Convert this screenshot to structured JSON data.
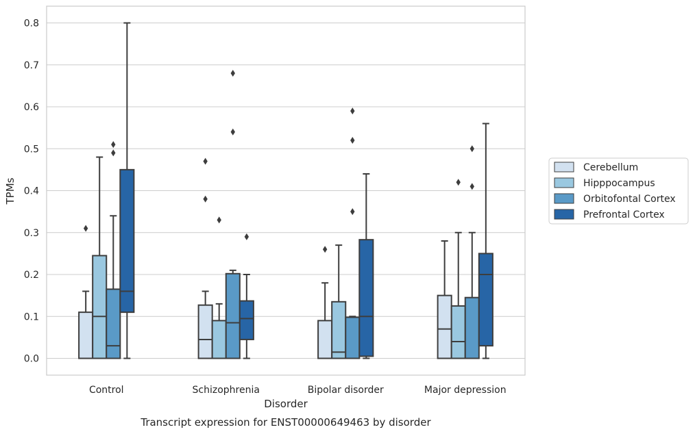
{
  "chart_data": {
    "type": "boxplot",
    "title": "",
    "caption": "Transcript expression for ENST00000649463 by disorder",
    "xlabel": "Disorder",
    "ylabel": "TPMs",
    "ylim": [
      -0.04,
      0.84
    ],
    "yticks": [
      0.0,
      0.1,
      0.2,
      0.3,
      0.4,
      0.5,
      0.6,
      0.7,
      0.8
    ],
    "ytick_labels": [
      "0.0",
      "0.1",
      "0.2",
      "0.3",
      "0.4",
      "0.5",
      "0.6",
      "0.7",
      "0.8"
    ],
    "grid": "horizontal",
    "legend_placement": "right-outside",
    "categories": [
      "Control",
      "Schizophrenia",
      "Bipolar disorder",
      "Major depression"
    ],
    "series": [
      {
        "name": "Cerebellum",
        "color": "#d2e1f0",
        "boxes": [
          {
            "whislo": 0.0,
            "q1": 0.0,
            "med": 0.0,
            "q3": 0.11,
            "whishi": 0.16,
            "fliers": [
              0.31
            ]
          },
          {
            "whislo": 0.0,
            "q1": 0.0,
            "med": 0.045,
            "q3": 0.127,
            "whishi": 0.16,
            "fliers": [
              0.38,
              0.47
            ]
          },
          {
            "whislo": 0.0,
            "q1": 0.0,
            "med": 0.0,
            "q3": 0.09,
            "whishi": 0.18,
            "fliers": [
              0.26
            ]
          },
          {
            "whislo": 0.0,
            "q1": 0.0,
            "med": 0.07,
            "q3": 0.15,
            "whishi": 0.28,
            "fliers": []
          }
        ]
      },
      {
        "name": "Hipppocampus",
        "color": "#9ac8e0",
        "boxes": [
          {
            "whislo": 0.0,
            "q1": 0.0,
            "med": 0.1,
            "q3": 0.245,
            "whishi": 0.48,
            "fliers": []
          },
          {
            "whislo": 0.0,
            "q1": 0.0,
            "med": 0.0,
            "q3": 0.09,
            "whishi": 0.13,
            "fliers": [
              0.33
            ]
          },
          {
            "whislo": 0.0,
            "q1": 0.0,
            "med": 0.015,
            "q3": 0.135,
            "whishi": 0.27,
            "fliers": []
          },
          {
            "whislo": 0.0,
            "q1": 0.0,
            "med": 0.04,
            "q3": 0.125,
            "whishi": 0.3,
            "fliers": [
              0.42
            ]
          }
        ]
      },
      {
        "name": "Orbitofontal Cortex",
        "color": "#5a9ac7",
        "boxes": [
          {
            "whislo": 0.0,
            "q1": 0.0,
            "med": 0.03,
            "q3": 0.165,
            "whishi": 0.34,
            "fliers": [
              0.49,
              0.51
            ]
          },
          {
            "whislo": 0.0,
            "q1": 0.0,
            "med": 0.085,
            "q3": 0.202,
            "whishi": 0.21,
            "fliers": [
              0.54,
              0.68
            ]
          },
          {
            "whislo": 0.0,
            "q1": 0.0,
            "med": 0.0,
            "q3": 0.098,
            "whishi": 0.1,
            "fliers": [
              0.35,
              0.52,
              0.59
            ]
          },
          {
            "whislo": 0.0,
            "q1": 0.0,
            "med": 0.0,
            "q3": 0.145,
            "whishi": 0.3,
            "fliers": [
              0.41,
              0.5
            ]
          }
        ]
      },
      {
        "name": "Prefrontal Cortex",
        "color": "#2765a6",
        "boxes": [
          {
            "whislo": 0.0,
            "q1": 0.11,
            "med": 0.16,
            "q3": 0.45,
            "whishi": 0.8,
            "fliers": []
          },
          {
            "whislo": 0.0,
            "q1": 0.045,
            "med": 0.095,
            "q3": 0.137,
            "whishi": 0.2,
            "fliers": [
              0.29
            ]
          },
          {
            "whislo": 0.0,
            "q1": 0.005,
            "med": 0.1,
            "q3": 0.283,
            "whishi": 0.44,
            "fliers": []
          },
          {
            "whislo": 0.0,
            "q1": 0.03,
            "med": 0.2,
            "q3": 0.25,
            "whishi": 0.56,
            "fliers": []
          }
        ]
      }
    ]
  }
}
